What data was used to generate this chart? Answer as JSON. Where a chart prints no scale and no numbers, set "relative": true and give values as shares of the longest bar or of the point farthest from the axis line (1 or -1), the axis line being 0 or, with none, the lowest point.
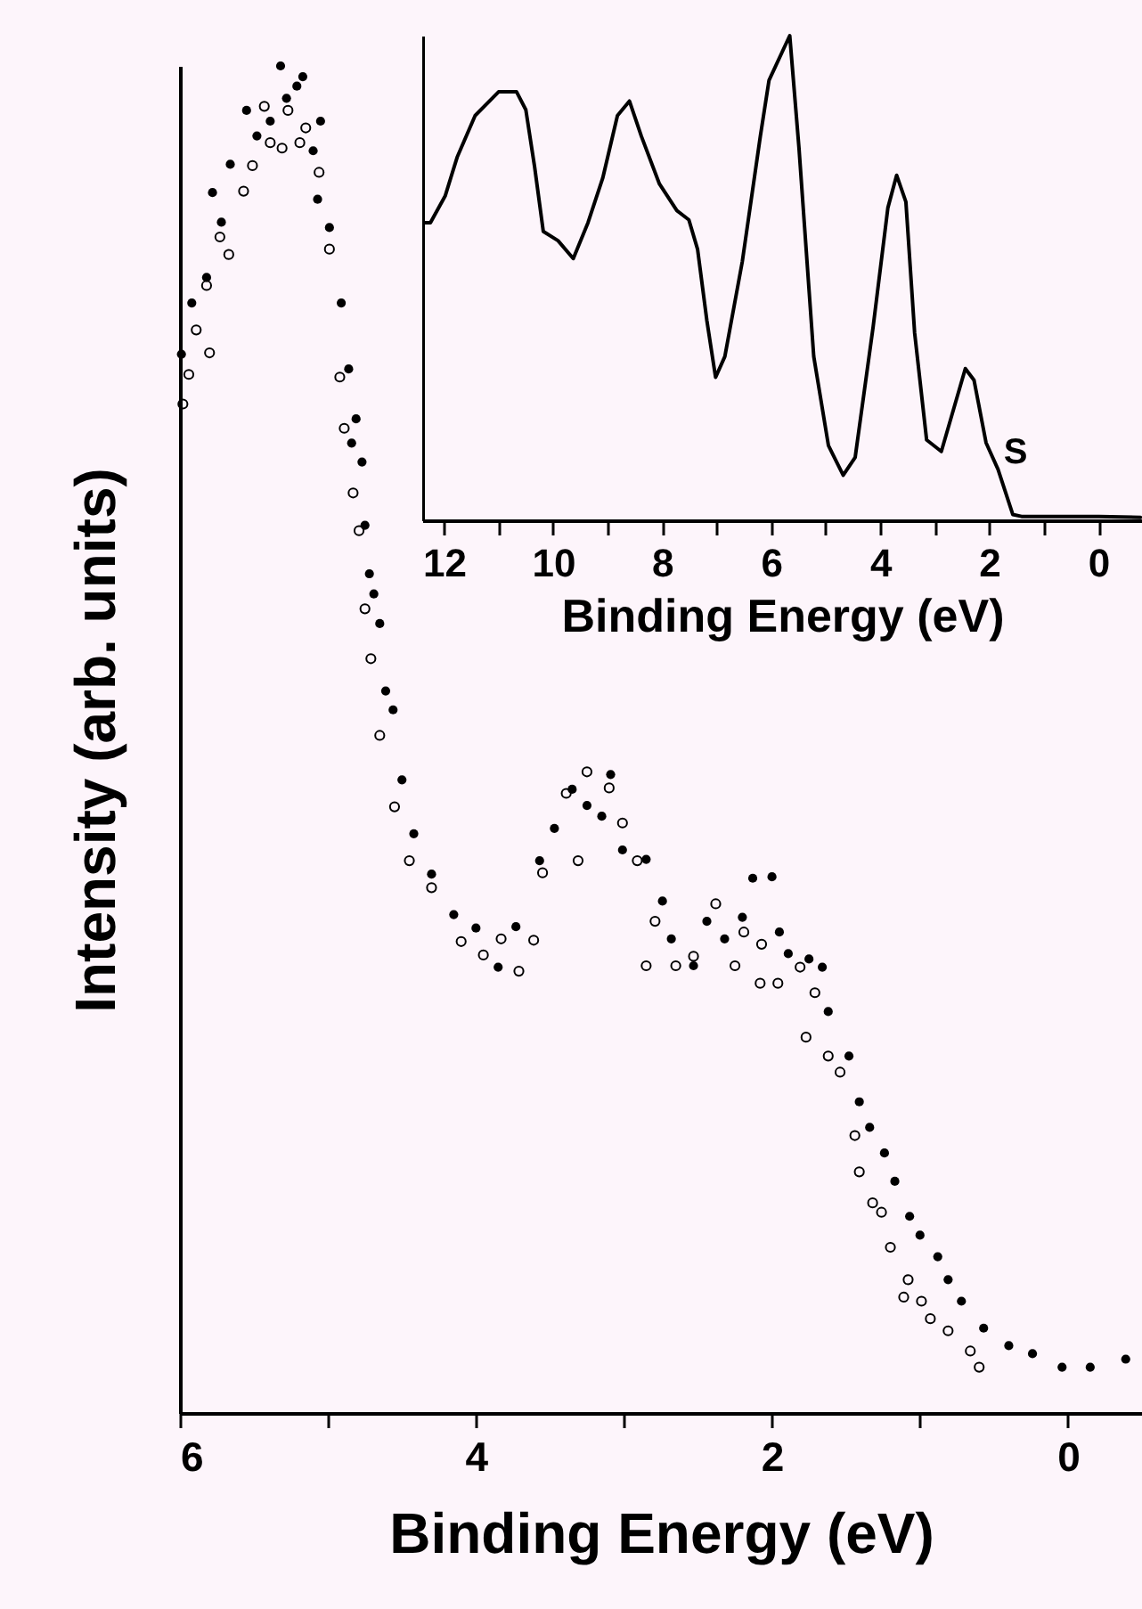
{
  "chart_data": [
    {
      "type": "scatter",
      "xlabel": "Binding Energy (eV)",
      "ylabel": "Intensity (arb. units)",
      "relative": true,
      "marker": "circle",
      "grid": false,
      "xlim": [
        6,
        -0.5
      ],
      "xticks": [
        6,
        {
          "value": 5,
          "label": null
        },
        4,
        {
          "value": 3,
          "label": null
        },
        2,
        {
          "value": 1,
          "label": null
        },
        0
      ],
      "series": [
        {
          "color": "#000000",
          "x": [
            5.99,
            5.92,
            5.82,
            5.78,
            5.72,
            5.66,
            5.55,
            5.48,
            5.39,
            5.32,
            5.28,
            5.21,
            5.17,
            5.1,
            5.07,
            5.05,
            4.99,
            4.91,
            4.86,
            4.84,
            4.81,
            4.77,
            4.75,
            4.72,
            4.69,
            4.65,
            4.61,
            4.56,
            4.5,
            4.42,
            4.3,
            4.15,
            4.0,
            3.85,
            3.73,
            3.57,
            3.47,
            3.35,
            3.25,
            3.15,
            3.09,
            3.01,
            2.85,
            2.74,
            2.68,
            2.53,
            2.44,
            2.32,
            2.2,
            2.13,
            2.0,
            1.95,
            1.89,
            1.75,
            1.66,
            1.62,
            1.48,
            1.41,
            1.34,
            1.24,
            1.17,
            1.07,
            1.0,
            0.88,
            0.81,
            0.72,
            0.57,
            0.4,
            0.24,
            0.04,
            -0.15,
            -0.39
          ],
          "values": [
            0.786,
            0.824,
            0.843,
            0.906,
            0.884,
            0.927,
            0.967,
            0.948,
            0.959,
            1.0,
            0.976,
            0.985,
            0.992,
            0.937,
            0.901,
            0.959,
            0.88,
            0.824,
            0.775,
            0.72,
            0.738,
            0.706,
            0.659,
            0.623,
            0.608,
            0.586,
            0.536,
            0.522,
            0.47,
            0.43,
            0.4,
            0.37,
            0.36,
            0.331,
            0.361,
            0.41,
            0.434,
            0.463,
            0.451,
            0.443,
            0.474,
            0.418,
            0.411,
            0.38,
            0.352,
            0.332,
            0.365,
            0.352,
            0.368,
            0.397,
            0.398,
            0.357,
            0.341,
            0.337,
            0.331,
            0.298,
            0.265,
            0.231,
            0.212,
            0.193,
            0.172,
            0.146,
            0.132,
            0.116,
            0.099,
            0.083,
            0.063,
            0.05,
            0.044,
            0.034,
            0.034,
            0.04
          ]
        },
        {
          "color": "#000000",
          "x": [
            5.98,
            5.94,
            5.89,
            5.82,
            5.8,
            5.73,
            5.67,
            5.57,
            5.51,
            5.43,
            5.39,
            5.31,
            5.27,
            5.19,
            5.15,
            5.06,
            4.99,
            4.92,
            4.89,
            4.83,
            4.79,
            4.75,
            4.71,
            4.65,
            4.55,
            4.45,
            4.3,
            4.1,
            3.95,
            3.83,
            3.71,
            3.61,
            3.55,
            3.39,
            3.31,
            3.25,
            3.1,
            3.01,
            2.91,
            2.85,
            2.79,
            2.65,
            2.53,
            2.38,
            2.25,
            2.19,
            2.08,
            2.07,
            1.96,
            1.81,
            1.77,
            1.71,
            1.62,
            1.54,
            1.44,
            1.41,
            1.32,
            1.26,
            1.2,
            1.11,
            1.08,
            0.99,
            0.93,
            0.81,
            0.66,
            0.6
          ],
          "values": [
            0.749,
            0.771,
            0.804,
            0.837,
            0.787,
            0.873,
            0.86,
            0.907,
            0.926,
            0.97,
            0.943,
            0.939,
            0.967,
            0.943,
            0.954,
            0.921,
            0.864,
            0.769,
            0.731,
            0.683,
            0.655,
            0.597,
            0.56,
            0.503,
            0.45,
            0.41,
            0.39,
            0.35,
            0.34,
            0.352,
            0.328,
            0.351,
            0.401,
            0.46,
            0.41,
            0.476,
            0.464,
            0.438,
            0.41,
            0.332,
            0.365,
            0.332,
            0.339,
            0.378,
            0.332,
            0.357,
            0.319,
            0.348,
            0.319,
            0.331,
            0.279,
            0.312,
            0.265,
            0.253,
            0.206,
            0.179,
            0.156,
            0.149,
            0.123,
            0.086,
            0.099,
            0.083,
            0.07,
            0.061,
            0.046,
            0.034
          ]
        }
      ]
    },
    {
      "type": "line",
      "xlabel": "Binding Energy (eV)",
      "relative": true,
      "grid": false,
      "marker": "none",
      "xlim": [
        12.4,
        -0.8
      ],
      "xticks": [
        12,
        {
          "value": 11,
          "label": null
        },
        10,
        {
          "value": 9,
          "label": null
        },
        8,
        {
          "value": 7,
          "label": null
        },
        6,
        {
          "value": 5,
          "label": null
        },
        4,
        {
          "value": 3,
          "label": null
        },
        2,
        {
          "value": 1,
          "label": null
        },
        0
      ],
      "annotations": [
        "S"
      ],
      "series": [
        {
          "color": "#000000",
          "x": [
            12.39,
            12.25,
            11.98,
            11.76,
            11.43,
            11.0,
            10.67,
            10.5,
            10.34,
            10.18,
            9.91,
            9.63,
            9.36,
            9.09,
            8.82,
            8.6,
            8.38,
            8.05,
            7.73,
            7.51,
            7.35,
            7.18,
            7.02,
            6.85,
            6.53,
            6.2,
            6.04,
            5.66,
            5.49,
            5.22,
            4.95,
            4.68,
            4.46,
            4.13,
            3.86,
            3.7,
            3.53,
            3.37,
            3.15,
            2.88,
            2.44,
            2.28,
            2.06,
            1.84,
            1.57,
            1.41,
            0.64,
            -0.01,
            -0.77
          ],
          "values": [
            0.614,
            0.614,
            0.669,
            0.749,
            0.835,
            0.884,
            0.884,
            0.847,
            0.73,
            0.596,
            0.577,
            0.54,
            0.614,
            0.706,
            0.835,
            0.865,
            0.792,
            0.694,
            0.639,
            0.62,
            0.559,
            0.412,
            0.295,
            0.338,
            0.534,
            0.792,
            0.908,
            1.0,
            0.767,
            0.338,
            0.154,
            0.093,
            0.13,
            0.4,
            0.645,
            0.712,
            0.657,
            0.387,
            0.166,
            0.142,
            0.313,
            0.289,
            0.16,
            0.105,
            0.012,
            0.008,
            0.008,
            0.008,
            0.006
          ]
        }
      ]
    }
  ]
}
